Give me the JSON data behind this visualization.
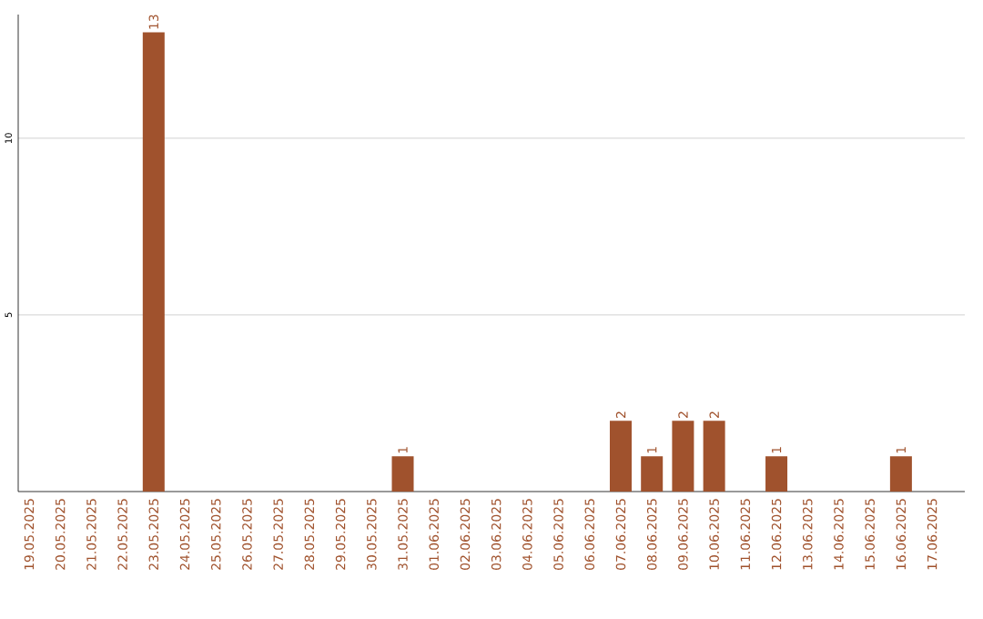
{
  "chart_data": {
    "type": "bar",
    "categories": [
      "19.05.2025",
      "20.05.2025",
      "21.05.2025",
      "22.05.2025",
      "23.05.2025",
      "24.05.2025",
      "25.05.2025",
      "26.05.2025",
      "27.05.2025",
      "28.05.2025",
      "29.05.2025",
      "30.05.2025",
      "31.05.2025",
      "01.06.2025",
      "02.06.2025",
      "03.06.2025",
      "04.06.2025",
      "05.06.2025",
      "06.06.2025",
      "07.06.2025",
      "08.06.2025",
      "09.06.2025",
      "10.06.2025",
      "11.06.2025",
      "12.06.2025",
      "13.06.2025",
      "14.06.2025",
      "15.06.2025",
      "16.06.2025",
      "17.06.2025"
    ],
    "values": [
      0,
      0,
      0,
      0,
      13,
      0,
      0,
      0,
      0,
      0,
      0,
      0,
      1,
      0,
      0,
      0,
      0,
      0,
      0,
      2,
      1,
      2,
      2,
      0,
      1,
      0,
      0,
      0,
      1,
      0
    ],
    "value_labels": [
      null,
      null,
      null,
      null,
      "13",
      null,
      null,
      null,
      null,
      null,
      null,
      null,
      "1",
      null,
      null,
      null,
      null,
      null,
      null,
      "2",
      "1",
      "2",
      "2",
      null,
      "1",
      null,
      null,
      null,
      "1",
      null
    ],
    "color": "#a0522d",
    "ylim": [
      0,
      13.5
    ],
    "yticks": [
      5,
      10
    ],
    "grid": "y"
  }
}
